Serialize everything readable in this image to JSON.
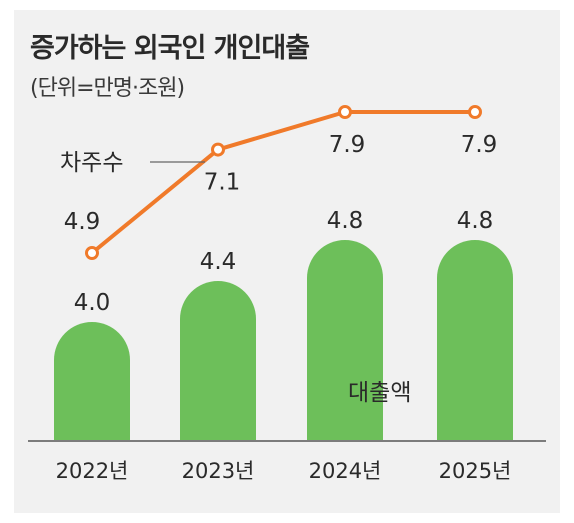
{
  "title": "증가하는 외국인 개인대출",
  "subtitle": "(단위=만명·조원)",
  "chart_data": {
    "type": "bar",
    "categories": [
      "2022년",
      "2023년",
      "2024년",
      "2025년"
    ],
    "series": [
      {
        "name": "대출액",
        "type": "bar",
        "values": [
          4.0,
          4.4,
          4.8,
          4.8
        ]
      },
      {
        "name": "차주수",
        "type": "line",
        "values": [
          4.9,
          7.1,
          7.9,
          7.9
        ]
      }
    ],
    "colors": {
      "bar": "#6dbf5a",
      "line": "#f07a2a",
      "marker_fill": "#ffffff",
      "background": "#f1f1f1"
    },
    "grid": false
  }
}
